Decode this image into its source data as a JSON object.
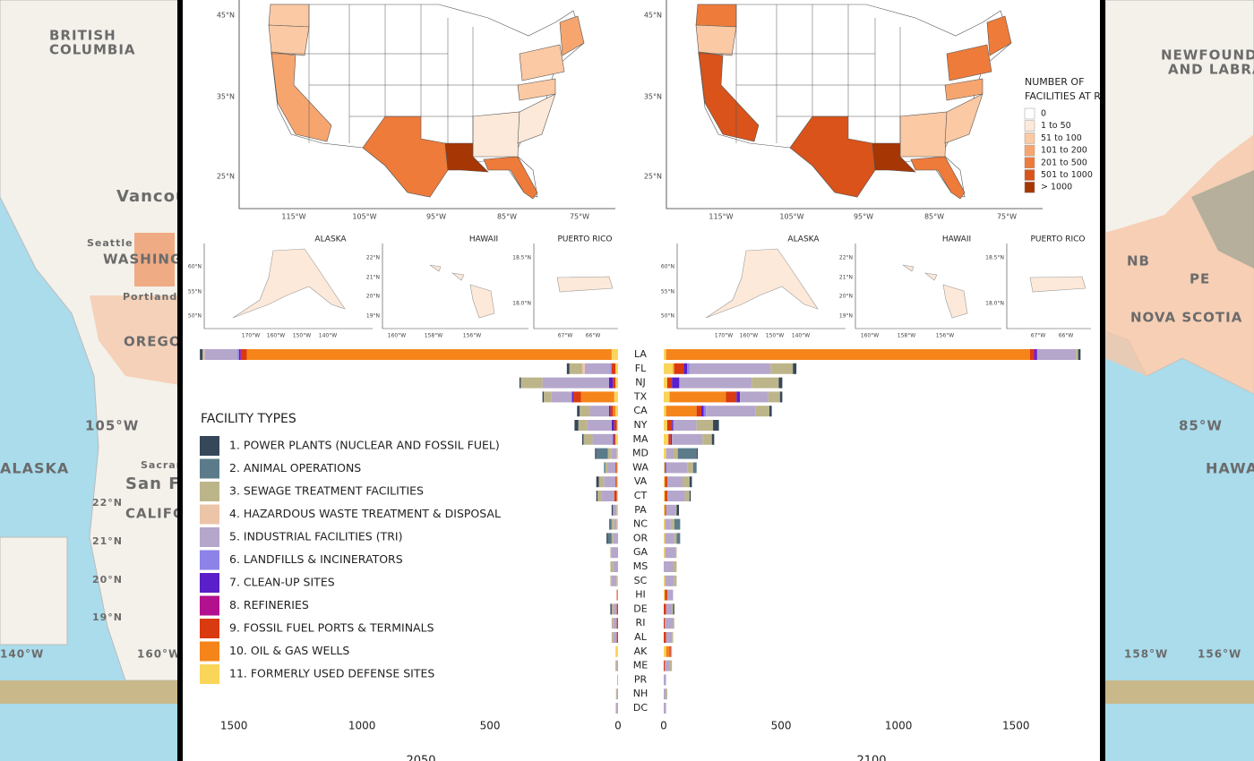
{
  "background": {
    "left": [
      "BRITISH",
      "COLUMBIA",
      "Vancou",
      "Seattle",
      "WASHING",
      "Portland",
      "OREGO",
      "105°W",
      "ALASKA",
      "Sacram",
      "San F",
      "CALIFO",
      "22°N",
      "21°N",
      "20°N",
      "19°N",
      "140°W",
      "160°W"
    ],
    "right": [
      "NEWFOUNDL",
      "AND LABRA",
      "NB",
      "PE",
      "NOVA SCOTIA",
      "85°W",
      "HAWA",
      "158°W",
      "156°W"
    ]
  },
  "maps": {
    "lat_labels": [
      "45°N",
      "35°N",
      "25°N"
    ],
    "lon_labels": [
      "115°W",
      "105°W",
      "95°W",
      "85°W",
      "75°W"
    ],
    "insets": [
      {
        "title": "ALASKA",
        "lat_labels": [
          "60°N",
          "55°N",
          "50°N"
        ],
        "lon_labels": [
          "170°W",
          "160°W",
          "150°W",
          "140°W"
        ]
      },
      {
        "title": "HAWAII",
        "lat_labels": [
          "22°N",
          "21°N",
          "20°N",
          "19°N"
        ],
        "lon_labels": [
          "160°W",
          "158°W",
          "156°W"
        ]
      },
      {
        "title": "PUERTO RICO",
        "lat_labels": [
          "18.5°N",
          "18.0°N"
        ],
        "lon_labels": [
          "67°W",
          "66°W"
        ]
      }
    ],
    "legend": {
      "title": [
        "NUMBER OF",
        "FACILITIES AT RISK"
      ],
      "items": [
        {
          "label": "0",
          "color": "#ffffff"
        },
        {
          "label": "1 to 50",
          "color": "#fde9d9"
        },
        {
          "label": "51 to 100",
          "color": "#fbc9a3"
        },
        {
          "label": "101 to 200",
          "color": "#f7a56f"
        },
        {
          "label": "201 to 500",
          "color": "#ee7b3a"
        },
        {
          "label": "501 to 1000",
          "color": "#d9531a"
        },
        {
          "label": "> 1000",
          "color": "#a63603"
        }
      ]
    }
  },
  "chart_data": [
    {
      "type": "bar",
      "orientation": "horizontal",
      "title": "2050",
      "legend_title": "FACILITY TYPES",
      "categories": [
        "LA",
        "FL",
        "NJ",
        "TX",
        "CA",
        "NY",
        "MA",
        "MD",
        "WA",
        "VA",
        "CT",
        "PA",
        "NC",
        "OR",
        "GA",
        "MS",
        "SC",
        "HI",
        "DE",
        "RI",
        "AL",
        "AK",
        "ME",
        "PR",
        "NH",
        "DC"
      ],
      "xlim": [
        0,
        1700
      ],
      "xticks": [
        0,
        500,
        1000,
        1500
      ],
      "series": [
        {
          "name": "1. POWER PLANTS (NUCLEAR AND FOSSIL FUEL)",
          "color": "#36475a",
          "values": [
            10,
            10,
            5,
            5,
            10,
            15,
            5,
            5,
            0,
            10,
            5,
            5,
            0,
            5,
            0,
            0,
            0,
            0,
            5,
            0,
            0,
            0,
            0,
            0,
            0,
            0
          ]
        },
        {
          "name": "2. ANIMAL OPERATIONS",
          "color": "#5b7b8a",
          "values": [
            0,
            0,
            0,
            0,
            0,
            0,
            0,
            45,
            5,
            0,
            0,
            0,
            10,
            15,
            0,
            0,
            0,
            0,
            0,
            0,
            0,
            0,
            0,
            0,
            0,
            0
          ]
        },
        {
          "name": "3. SEWAGE TREATMENT FACILITIES",
          "color": "#bdb58a",
          "values": [
            5,
            50,
            85,
            30,
            40,
            35,
            35,
            15,
            10,
            20,
            15,
            0,
            10,
            5,
            5,
            10,
            5,
            0,
            5,
            5,
            5,
            0,
            5,
            0,
            3,
            0
          ]
        },
        {
          "name": "4. HAZARDOUS WASTE TREATMENT & DISPOSAL",
          "color": "#ecc4a8",
          "values": [
            3,
            10,
            0,
            0,
            0,
            0,
            0,
            0,
            0,
            0,
            0,
            0,
            0,
            0,
            0,
            0,
            0,
            0,
            0,
            0,
            0,
            0,
            0,
            0,
            0,
            3
          ]
        },
        {
          "name": "5. INDUSTRIAL FACILITIES (TRI)",
          "color": "#b5a6cc",
          "values": [
            130,
            100,
            260,
            80,
            75,
            95,
            80,
            20,
            30,
            45,
            50,
            15,
            10,
            20,
            25,
            20,
            20,
            0,
            15,
            15,
            15,
            0,
            5,
            3,
            5,
            7
          ]
        },
        {
          "name": "6. LANDFILLS & INCINERATORS",
          "color": "#8d82e8",
          "values": [
            5,
            5,
            0,
            0,
            0,
            0,
            0,
            0,
            0,
            0,
            0,
            0,
            0,
            0,
            0,
            0,
            0,
            0,
            0,
            0,
            0,
            0,
            0,
            0,
            0,
            0
          ]
        },
        {
          "name": "7. CLEAN-UP SITES",
          "color": "#5a1fc8",
          "values": [
            5,
            0,
            15,
            5,
            5,
            10,
            5,
            0,
            0,
            0,
            0,
            0,
            0,
            0,
            0,
            0,
            0,
            0,
            0,
            0,
            0,
            0,
            0,
            0,
            0,
            0
          ]
        },
        {
          "name": "8. REFINERIES",
          "color": "#b3108f",
          "values": [
            5,
            0,
            0,
            0,
            0,
            0,
            0,
            0,
            0,
            0,
            0,
            0,
            0,
            0,
            0,
            0,
            0,
            0,
            0,
            0,
            0,
            0,
            0,
            0,
            0,
            0
          ]
        },
        {
          "name": "9. FOSSIL FUEL PORTS & TERMINALS",
          "color": "#d93a10",
          "values": [
            20,
            15,
            10,
            30,
            10,
            10,
            5,
            0,
            5,
            5,
            10,
            0,
            0,
            0,
            0,
            0,
            0,
            3,
            5,
            5,
            5,
            0,
            0,
            0,
            0,
            0
          ]
        },
        {
          "name": "10. OIL & GAS WELLS",
          "color": "#f5841a",
          "values": [
            1425,
            0,
            0,
            130,
            10,
            0,
            0,
            0,
            0,
            0,
            0,
            0,
            0,
            0,
            0,
            0,
            0,
            0,
            0,
            0,
            0,
            0,
            0,
            0,
            0,
            0
          ]
        },
        {
          "name": "11. FORMERLY USED DEFENSE SITES",
          "color": "#f9d55a",
          "values": [
            25,
            10,
            10,
            15,
            10,
            5,
            10,
            5,
            5,
            5,
            5,
            5,
            5,
            0,
            0,
            0,
            5,
            2,
            0,
            0,
            0,
            10,
            0,
            0,
            0,
            0
          ]
        }
      ]
    },
    {
      "type": "bar",
      "orientation": "horizontal",
      "title": "2100",
      "xlim": [
        0,
        1850
      ],
      "xticks": [
        0,
        500,
        1000,
        1500
      ],
      "series": [
        {
          "values": [
            10,
            15,
            15,
            10,
            10,
            25,
            10,
            5,
            0,
            10,
            5,
            10,
            0,
            0,
            0,
            0,
            0,
            0,
            5,
            0,
            0,
            0,
            0,
            0,
            0,
            0
          ]
        },
        {
          "values": [
            0,
            0,
            0,
            0,
            0,
            0,
            0,
            80,
            15,
            0,
            0,
            0,
            25,
            15,
            0,
            0,
            0,
            0,
            0,
            0,
            0,
            0,
            0,
            0,
            0,
            0
          ]
        },
        {
          "values": [
            10,
            95,
            115,
            50,
            60,
            70,
            40,
            20,
            25,
            30,
            20,
            5,
            15,
            10,
            5,
            15,
            10,
            0,
            5,
            5,
            5,
            0,
            10,
            0,
            5,
            0
          ]
        },
        {
          "values": [
            0,
            0,
            0,
            0,
            0,
            0,
            0,
            0,
            0,
            0,
            0,
            0,
            0,
            0,
            0,
            0,
            0,
            0,
            0,
            0,
            0,
            0,
            0,
            0,
            0,
            0
          ]
        },
        {
          "values": [
            165,
            345,
            305,
            120,
            210,
            100,
            130,
            30,
            90,
            65,
            75,
            40,
            25,
            40,
            45,
            40,
            40,
            25,
            25,
            35,
            25,
            5,
            20,
            10,
            10,
            10
          ]
        },
        {
          "values": [
            0,
            10,
            5,
            0,
            10,
            0,
            0,
            0,
            0,
            0,
            0,
            0,
            0,
            0,
            0,
            0,
            0,
            0,
            0,
            0,
            0,
            0,
            0,
            0,
            0,
            0
          ]
        },
        {
          "values": [
            10,
            15,
            30,
            15,
            10,
            5,
            5,
            0,
            5,
            0,
            0,
            0,
            0,
            0,
            0,
            0,
            0,
            0,
            0,
            0,
            0,
            0,
            0,
            0,
            0,
            0
          ]
        },
        {
          "values": [
            5,
            0,
            0,
            0,
            0,
            0,
            0,
            0,
            0,
            0,
            0,
            0,
            0,
            0,
            0,
            0,
            0,
            0,
            0,
            0,
            0,
            0,
            0,
            0,
            0,
            0
          ]
        },
        {
          "values": [
            15,
            40,
            20,
            45,
            20,
            20,
            10,
            0,
            0,
            10,
            10,
            5,
            0,
            0,
            0,
            0,
            0,
            10,
            10,
            5,
            10,
            5,
            5,
            0,
            0,
            0
          ]
        },
        {
          "values": [
            1550,
            5,
            0,
            240,
            130,
            0,
            0,
            0,
            0,
            0,
            0,
            0,
            0,
            0,
            0,
            0,
            0,
            0,
            0,
            0,
            0,
            15,
            0,
            0,
            0,
            0
          ]
        },
        {
          "values": [
            10,
            40,
            15,
            25,
            10,
            15,
            20,
            10,
            5,
            5,
            5,
            5,
            5,
            5,
            5,
            0,
            5,
            5,
            0,
            0,
            0,
            10,
            0,
            0,
            0,
            0
          ]
        }
      ]
    }
  ]
}
